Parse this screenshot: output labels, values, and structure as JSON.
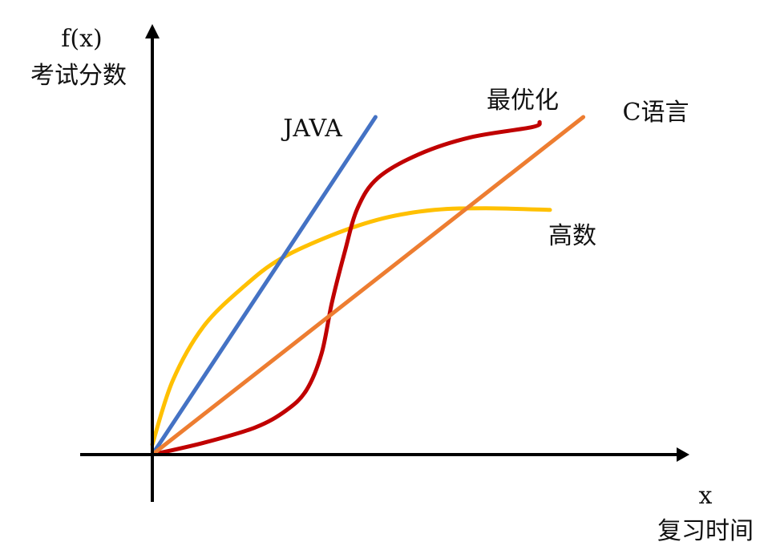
{
  "chart_data": {
    "type": "line",
    "axes": {
      "x_symbol": "x",
      "x_label": "复习时间",
      "y_symbol": "f(x)",
      "y_label": "考试分数"
    },
    "xlim": [
      0,
      100
    ],
    "ylim": [
      0,
      100
    ],
    "grid": false,
    "ticks": false,
    "series": [
      {
        "name": "高数",
        "color": "#FFC000",
        "points": [
          [
            0,
            3
          ],
          [
            4,
            22
          ],
          [
            10,
            38
          ],
          [
            18,
            50
          ],
          [
            25,
            58
          ],
          [
            35,
            65
          ],
          [
            45,
            70
          ],
          [
            55,
            72.5
          ],
          [
            65,
            73
          ],
          [
            77.5,
            72.5
          ]
        ]
      },
      {
        "name": "JAVA",
        "color": "#4472C4",
        "points": [
          [
            0,
            0
          ],
          [
            43.5,
            100
          ]
        ]
      },
      {
        "name": "最优化",
        "color": "#C00000",
        "points": [
          [
            0,
            0
          ],
          [
            10,
            3.5
          ],
          [
            20,
            8
          ],
          [
            26,
            13
          ],
          [
            30,
            19
          ],
          [
            33,
            30
          ],
          [
            35,
            45
          ],
          [
            37.5,
            60
          ],
          [
            40,
            73
          ],
          [
            44,
            82
          ],
          [
            52,
            89
          ],
          [
            62,
            94
          ],
          [
            74,
            97
          ],
          [
            75.5,
            98.5
          ]
        ]
      },
      {
        "name": "C语言",
        "color": "#ED7D31",
        "points": [
          [
            0,
            0
          ],
          [
            84,
            100
          ]
        ]
      }
    ]
  }
}
